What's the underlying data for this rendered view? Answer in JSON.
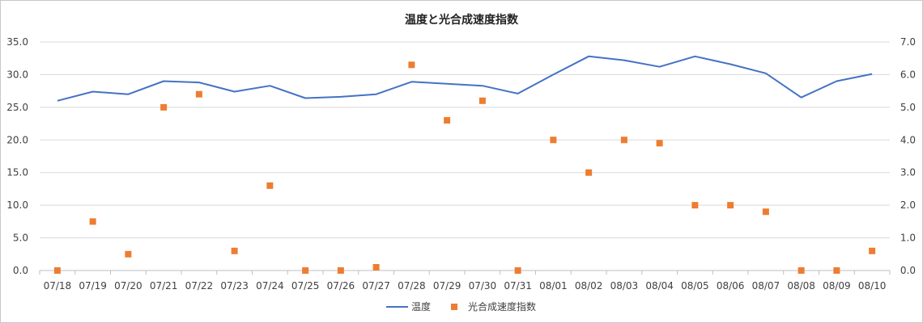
{
  "chart_data": {
    "type": "line",
    "title": "温度と光合成速度指数",
    "categories": [
      "07/18",
      "07/19",
      "07/20",
      "07/21",
      "07/22",
      "07/23",
      "07/24",
      "07/25",
      "07/26",
      "07/27",
      "07/28",
      "07/29",
      "07/30",
      "07/31",
      "08/01",
      "08/02",
      "08/03",
      "08/04",
      "08/05",
      "08/06",
      "08/07",
      "08/08",
      "08/09",
      "08/10"
    ],
    "series": [
      {
        "name": "温度",
        "kind": "line",
        "axis": "left",
        "color": "#4472c4",
        "values": [
          26.0,
          27.4,
          27.0,
          29.0,
          28.8,
          27.4,
          28.3,
          26.4,
          26.6,
          27.0,
          28.9,
          28.6,
          28.3,
          27.1,
          30.0,
          32.8,
          32.2,
          31.2,
          32.8,
          31.6,
          30.2,
          26.5,
          29.0,
          30.1
        ]
      },
      {
        "name": "光合成速度指数",
        "kind": "scatter",
        "axis": "right",
        "color": "#ed7d31",
        "values": [
          0.0,
          1.5,
          0.5,
          5.0,
          5.4,
          0.6,
          2.6,
          0.0,
          0.0,
          0.1,
          6.3,
          4.6,
          5.2,
          0.0,
          4.0,
          3.0,
          4.0,
          3.9,
          2.0,
          2.0,
          1.8,
          0.0,
          0.0,
          0.6
        ]
      }
    ],
    "y_left": {
      "min": 0,
      "max": 35,
      "ticks": [
        "0.0",
        "5.0",
        "10.0",
        "15.0",
        "20.0",
        "25.0",
        "30.0",
        "35.0"
      ]
    },
    "y_right": {
      "min": 0,
      "max": 7,
      "ticks": [
        "0.0",
        "1.0",
        "2.0",
        "3.0",
        "4.0",
        "5.0",
        "6.0",
        "7.0"
      ]
    },
    "grid": true,
    "legend_position": "bottom"
  }
}
